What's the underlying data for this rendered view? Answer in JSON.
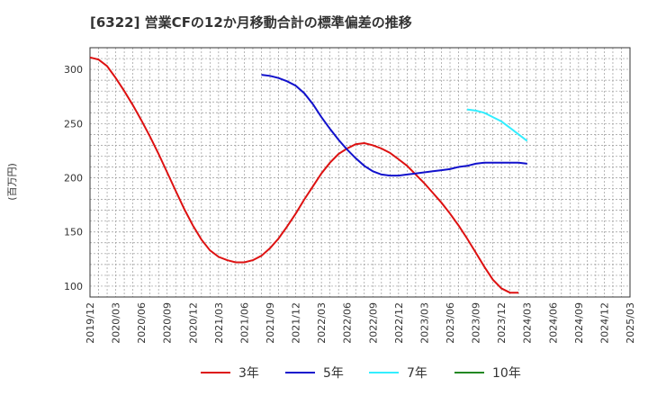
{
  "chart_data": {
    "type": "line",
    "title": "[6322]  営業CFの12か月移動合計の標準偏差の推移",
    "ylabel": "(百万円)",
    "xlabel": "",
    "ylim": [
      90,
      320
    ],
    "yticks": [
      100,
      150,
      200,
      250,
      300
    ],
    "x_tick_labels": [
      "2019/12",
      "2020/03",
      "2020/06",
      "2020/09",
      "2020/12",
      "2021/03",
      "2021/06",
      "2021/09",
      "2021/12",
      "2022/03",
      "2022/06",
      "2022/09",
      "2022/12",
      "2023/03",
      "2023/06",
      "2023/09",
      "2023/12",
      "2024/03",
      "2024/06",
      "2024/09",
      "2024/12",
      "2025/03"
    ],
    "grid": true,
    "legend_position": "bottom",
    "series": [
      {
        "name": "3年",
        "color": "#dd1111",
        "points": [
          [
            "2019/12",
            311
          ],
          [
            "2020/01",
            309
          ],
          [
            "2020/02",
            303
          ],
          [
            "2020/03",
            292
          ],
          [
            "2020/04",
            280
          ],
          [
            "2020/05",
            267
          ],
          [
            "2020/06",
            253
          ],
          [
            "2020/07",
            238
          ],
          [
            "2020/08",
            222
          ],
          [
            "2020/09",
            205
          ],
          [
            "2020/10",
            188
          ],
          [
            "2020/11",
            171
          ],
          [
            "2020/12",
            156
          ],
          [
            "2021/01",
            143
          ],
          [
            "2021/02",
            133
          ],
          [
            "2021/03",
            127
          ],
          [
            "2021/04",
            124
          ],
          [
            "2021/05",
            122
          ],
          [
            "2021/06",
            122
          ],
          [
            "2021/07",
            124
          ],
          [
            "2021/08",
            128
          ],
          [
            "2021/09",
            135
          ],
          [
            "2021/10",
            144
          ],
          [
            "2021/11",
            155
          ],
          [
            "2021/12",
            167
          ],
          [
            "2022/01",
            180
          ],
          [
            "2022/02",
            192
          ],
          [
            "2022/03",
            204
          ],
          [
            "2022/04",
            214
          ],
          [
            "2022/05",
            222
          ],
          [
            "2022/06",
            227
          ],
          [
            "2022/07",
            231
          ],
          [
            "2022/08",
            232
          ],
          [
            "2022/09",
            230
          ],
          [
            "2022/10",
            227
          ],
          [
            "2022/11",
            223
          ],
          [
            "2022/12",
            217
          ],
          [
            "2023/01",
            211
          ],
          [
            "2023/02",
            203
          ],
          [
            "2023/03",
            195
          ],
          [
            "2023/04",
            186
          ],
          [
            "2023/05",
            177
          ],
          [
            "2023/06",
            167
          ],
          [
            "2023/07",
            156
          ],
          [
            "2023/08",
            144
          ],
          [
            "2023/09",
            131
          ],
          [
            "2023/10",
            118
          ],
          [
            "2023/11",
            106
          ],
          [
            "2023/12",
            98
          ],
          [
            "2024/01",
            94
          ],
          [
            "2024/02",
            94
          ]
        ]
      },
      {
        "name": "5年",
        "color": "#1111cc",
        "points": [
          [
            "2021/08",
            295
          ],
          [
            "2021/09",
            294
          ],
          [
            "2021/10",
            292
          ],
          [
            "2021/11",
            289
          ],
          [
            "2021/12",
            285
          ],
          [
            "2022/01",
            278
          ],
          [
            "2022/02",
            268
          ],
          [
            "2022/03",
            256
          ],
          [
            "2022/04",
            245
          ],
          [
            "2022/05",
            235
          ],
          [
            "2022/06",
            226
          ],
          [
            "2022/07",
            218
          ],
          [
            "2022/08",
            211
          ],
          [
            "2022/09",
            206
          ],
          [
            "2022/10",
            203
          ],
          [
            "2022/11",
            202
          ],
          [
            "2022/12",
            202
          ],
          [
            "2023/01",
            203
          ],
          [
            "2023/02",
            204
          ],
          [
            "2023/03",
            205
          ],
          [
            "2023/04",
            206
          ],
          [
            "2023/05",
            207
          ],
          [
            "2023/06",
            208
          ],
          [
            "2023/07",
            210
          ],
          [
            "2023/08",
            211
          ],
          [
            "2023/09",
            213
          ],
          [
            "2023/10",
            214
          ],
          [
            "2023/11",
            214
          ],
          [
            "2023/12",
            214
          ],
          [
            "2024/01",
            214
          ],
          [
            "2024/02",
            214
          ],
          [
            "2024/03",
            213
          ]
        ]
      },
      {
        "name": "7年",
        "color": "#33eeff",
        "points": [
          [
            "2023/08",
            263
          ],
          [
            "2023/09",
            262
          ],
          [
            "2023/10",
            260
          ],
          [
            "2023/11",
            256
          ],
          [
            "2023/12",
            252
          ],
          [
            "2024/01",
            246
          ],
          [
            "2024/02",
            240
          ],
          [
            "2024/03",
            234
          ]
        ]
      },
      {
        "name": "10年",
        "color": "#228822",
        "points": []
      }
    ]
  }
}
